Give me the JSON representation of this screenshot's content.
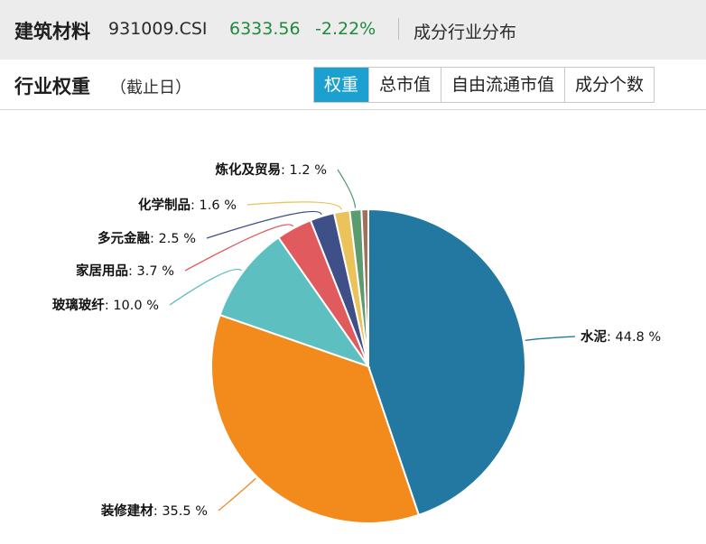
{
  "header": {
    "index_name": "建筑材料",
    "index_code": "931009.CSI",
    "price": "6333.56",
    "change_pct": "-2.22%",
    "subtitle": "成分行业分布",
    "price_color": "#1f8a3c"
  },
  "section": {
    "title": "行业权重",
    "subtitle": "（截止日）"
  },
  "tabs": [
    {
      "label": "权重",
      "active": true
    },
    {
      "label": "总市值",
      "active": false
    },
    {
      "label": "自由流通市值",
      "active": false
    },
    {
      "label": "成分个数",
      "active": false
    }
  ],
  "chart_data": {
    "type": "pie",
    "unit": "%",
    "slices": [
      {
        "label": "水泥",
        "value": 44.8,
        "color": "#2278a0"
      },
      {
        "label": "装修建材",
        "value": 35.5,
        "color": "#f28a1c"
      },
      {
        "label": "玻璃玻纤",
        "value": 10.0,
        "color": "#5dbfc0"
      },
      {
        "label": "家居用品",
        "value": 3.7,
        "color": "#e05a5e"
      },
      {
        "label": "多元金融",
        "value": 2.5,
        "color": "#3f4f88"
      },
      {
        "label": "化学制品",
        "value": 1.6,
        "color": "#eac35a"
      },
      {
        "label": "炼化及贸易",
        "value": 1.2,
        "color": "#5a9c70"
      },
      {
        "label": "",
        "value": 0.7,
        "color": "#a0705a"
      }
    ],
    "value_labels": [
      "44.8 %",
      "35.5 %",
      "10.0 %",
      "3.7 %",
      "2.5 %",
      "1.6 %",
      "1.2 %"
    ]
  }
}
